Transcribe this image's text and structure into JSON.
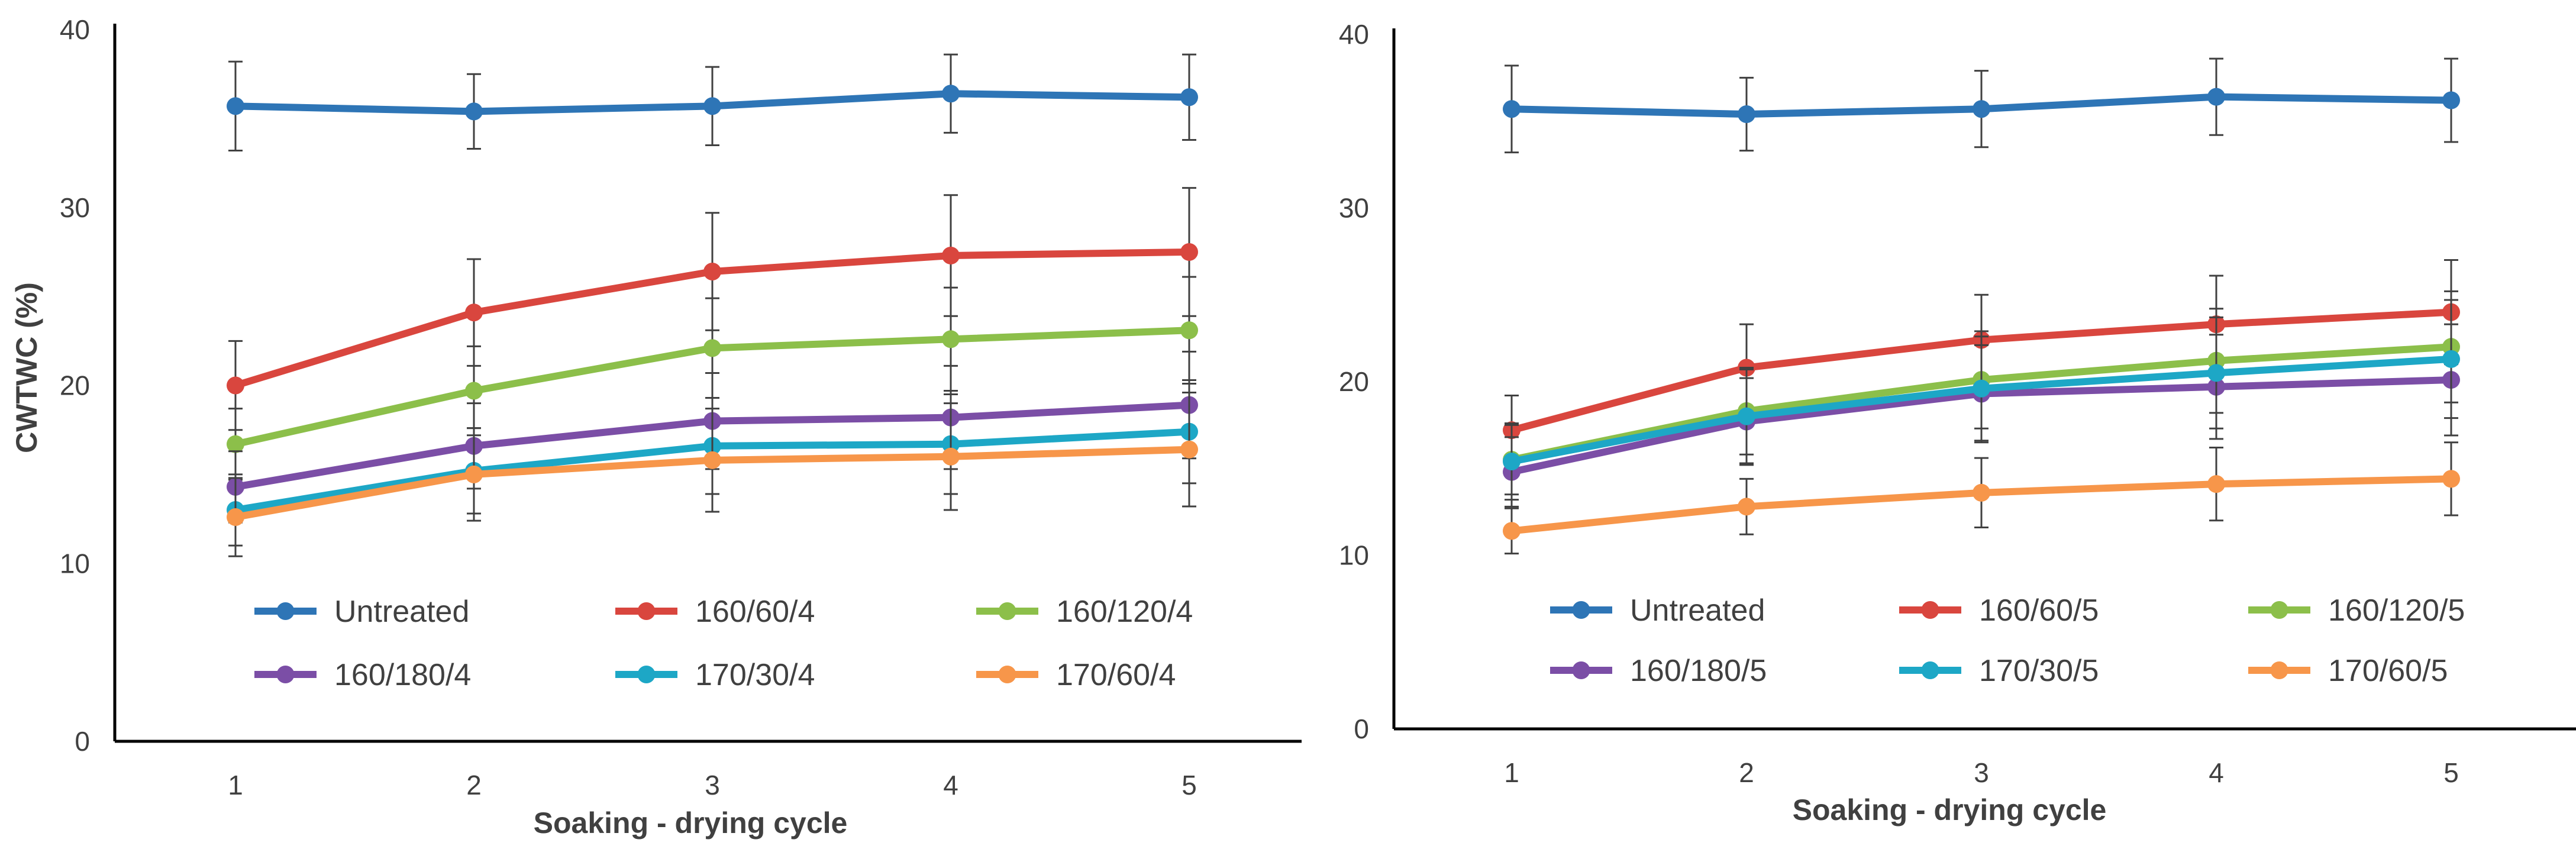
{
  "chart_data": [
    {
      "type": "line",
      "title": "",
      "xlabel": "Soaking - drying cycle",
      "ylabel": "CWTWC (%)",
      "ylim": [
        0,
        40
      ],
      "yticks": [
        "0",
        "10",
        "20",
        "30",
        "40"
      ],
      "categories": [
        "1",
        "2",
        "3",
        "4",
        "5"
      ],
      "legend_position": "bottom-inside",
      "series": [
        {
          "name": "Untreated",
          "color": "#2E75B6",
          "values": [
            35.7,
            35.4,
            35.7,
            36.4,
            36.2
          ],
          "err": [
            2.5,
            2.1,
            2.2,
            2.2,
            2.4
          ]
        },
        {
          "name": "160/60/4",
          "color": "#D9463E",
          "values": [
            20.0,
            24.1,
            26.4,
            27.3,
            27.5
          ],
          "err": [
            2.5,
            3.0,
            3.3,
            3.4,
            3.6
          ]
        },
        {
          "name": "160/120/4",
          "color": "#8CBF4A",
          "values": [
            16.7,
            19.7,
            22.1,
            22.6,
            23.1
          ],
          "err": [
            2.0,
            2.5,
            2.8,
            2.9,
            3.0
          ]
        },
        {
          "name": "160/180/4",
          "color": "#7B4EA6",
          "values": [
            14.3,
            16.6,
            18.0,
            18.2,
            18.9
          ],
          "err": [
            2.0,
            2.4,
            2.7,
            2.9,
            3.0
          ]
        },
        {
          "name": "170/30/4",
          "color": "#1DA7C6",
          "values": [
            13.0,
            15.2,
            16.6,
            16.7,
            17.4
          ],
          "err": [
            2.0,
            2.4,
            2.7,
            2.8,
            2.9
          ]
        },
        {
          "name": "170/60/4",
          "color": "#F7964A",
          "values": [
            12.6,
            15.0,
            15.8,
            16.0,
            16.4
          ],
          "err": [
            2.2,
            2.6,
            2.9,
            3.0,
            3.2
          ]
        }
      ]
    },
    {
      "type": "line",
      "title": "",
      "xlabel": "Soaking - drying cycle",
      "ylabel": "",
      "ylim": [
        0,
        40
      ],
      "yticks": [
        "0",
        "10",
        "20",
        "30",
        "40"
      ],
      "categories": [
        "1",
        "2",
        "3",
        "4",
        "5"
      ],
      "legend_position": "bottom-inside",
      "series": [
        {
          "name": "Untreated",
          "color": "#2E75B6",
          "values": [
            35.7,
            35.4,
            35.7,
            36.4,
            36.2
          ],
          "err": [
            2.5,
            2.1,
            2.2,
            2.2,
            2.4
          ]
        },
        {
          "name": "160/60/5",
          "color": "#D9463E",
          "values": [
            17.2,
            20.8,
            22.4,
            23.3,
            24.0
          ],
          "err": [
            2.0,
            2.5,
            2.6,
            2.8,
            3.0
          ]
        },
        {
          "name": "160/120/5",
          "color": "#8CBF4A",
          "values": [
            15.5,
            18.3,
            20.1,
            21.2,
            22.0
          ],
          "err": [
            2.0,
            2.5,
            2.8,
            3.0,
            3.2
          ]
        },
        {
          "name": "160/180/5",
          "color": "#7B4EA6",
          "values": [
            14.8,
            17.7,
            19.3,
            19.7,
            20.1
          ],
          "err": [
            2.0,
            2.5,
            2.8,
            3.0,
            3.2
          ]
        },
        {
          "name": "170/30/5",
          "color": "#1DA7C6",
          "values": [
            15.4,
            18.0,
            19.6,
            20.5,
            21.3
          ],
          "err": [
            2.2,
            2.7,
            3.0,
            3.2,
            3.4
          ]
        },
        {
          "name": "170/60/5",
          "color": "#F7964A",
          "values": [
            11.4,
            12.8,
            13.6,
            14.1,
            14.4
          ],
          "err": [
            1.3,
            1.6,
            2.0,
            2.1,
            2.1
          ]
        }
      ]
    }
  ]
}
